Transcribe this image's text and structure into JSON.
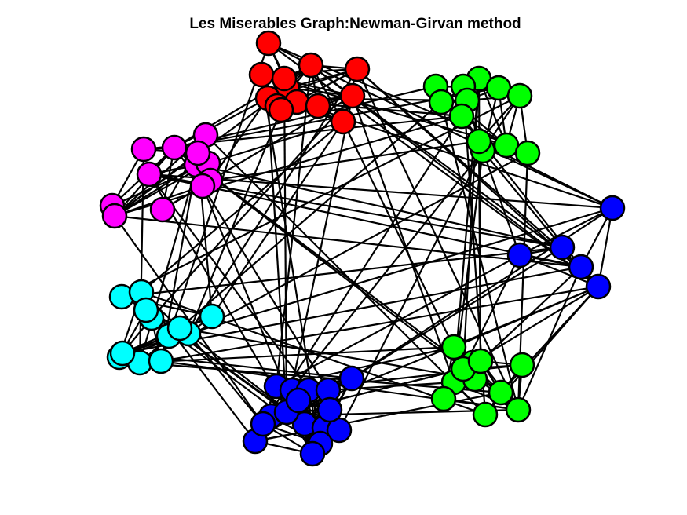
{
  "title": "Les Miserables Graph:Newman-Girvan method",
  "colors": {
    "edge": "#000000",
    "node_stroke": "#000000",
    "red": "#ff0000",
    "green": "#00ff00",
    "magenta": "#ff00ff",
    "blue": "#0000ff",
    "cyan": "#00ffff"
  },
  "communities": [
    {
      "name": "red",
      "color": "#ff0000",
      "count": 13
    },
    {
      "name": "green-top",
      "color": "#00ff00",
      "count": 12
    },
    {
      "name": "magenta",
      "color": "#ff00ff",
      "count": 12
    },
    {
      "name": "blue-right",
      "color": "#0000ff",
      "count": 5
    },
    {
      "name": "cyan",
      "color": "#00ffff",
      "count": 12
    },
    {
      "name": "green-bottom",
      "color": "#00ff00",
      "count": 11
    },
    {
      "name": "blue-bottom",
      "color": "#0000ff",
      "count": 16
    }
  ]
}
